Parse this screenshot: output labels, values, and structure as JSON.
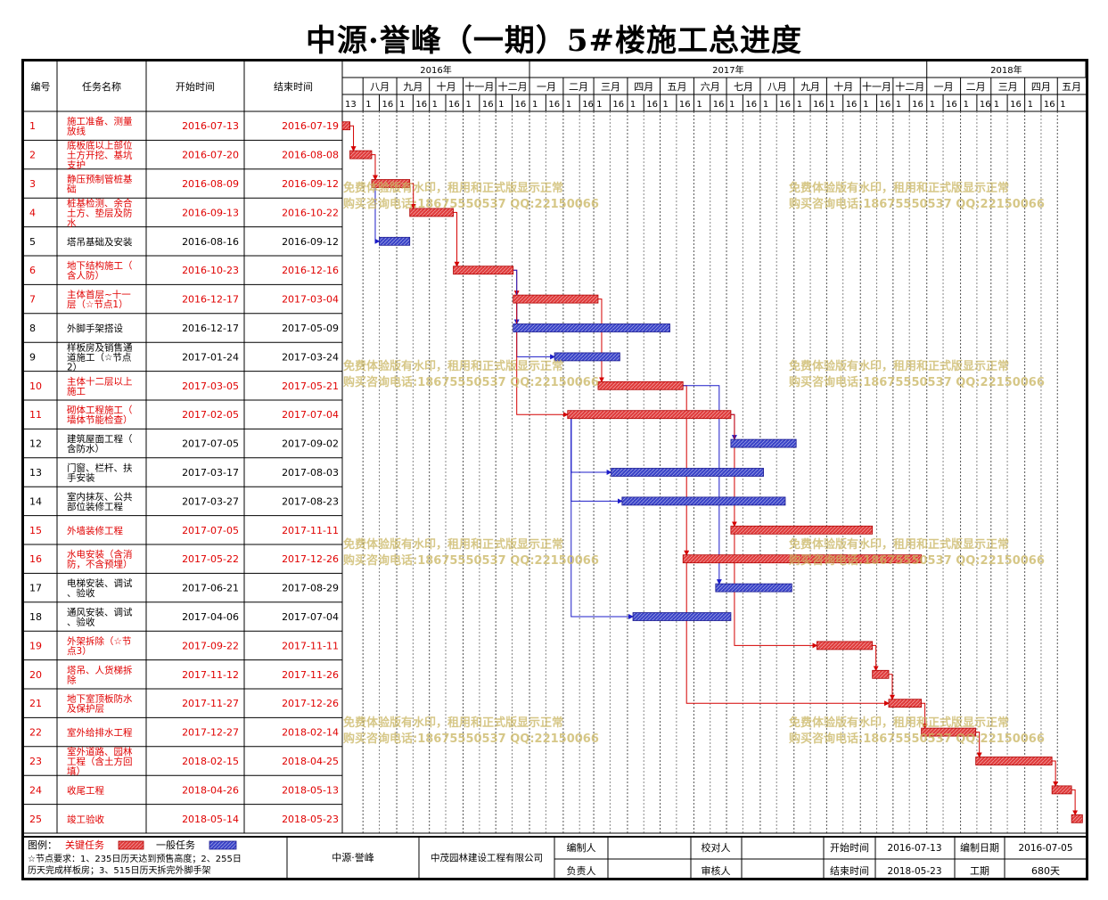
{
  "title": "中源·誉峰（一期）5#楼施工总进度",
  "header": {
    "col_id": "编号",
    "col_name": "任务名称",
    "col_start": "开始时间",
    "col_end": "结束时间",
    "years": [
      {
        "label": "2016年",
        "from": "2016-07-13",
        "to": "2017-01-01"
      },
      {
        "label": "2017年",
        "from": "2017-01-01",
        "to": "2018-01-01"
      },
      {
        "label": "2018年",
        "from": "2018-01-01",
        "to": "2018-05-27"
      }
    ],
    "months": [
      {
        "label": "八月",
        "from": "2016-08-01",
        "to": "2016-09-01"
      },
      {
        "label": "九月",
        "from": "2016-09-01",
        "to": "2016-10-01"
      },
      {
        "label": "十月",
        "from": "2016-10-01",
        "to": "2016-11-01"
      },
      {
        "label": "十一月",
        "from": "2016-11-01",
        "to": "2016-12-01"
      },
      {
        "label": "十二月",
        "from": "2016-12-01",
        "to": "2017-01-01"
      },
      {
        "label": "一月",
        "from": "2017-01-01",
        "to": "2017-02-01"
      },
      {
        "label": "二月",
        "from": "2017-02-01",
        "to": "2017-03-01"
      },
      {
        "label": "三月",
        "from": "2017-03-01",
        "to": "2017-04-01"
      },
      {
        "label": "四月",
        "from": "2017-04-01",
        "to": "2017-05-01"
      },
      {
        "label": "五月",
        "from": "2017-05-01",
        "to": "2017-06-01"
      },
      {
        "label": "六月",
        "from": "2017-06-01",
        "to": "2017-07-01"
      },
      {
        "label": "七月",
        "from": "2017-07-01",
        "to": "2017-08-01"
      },
      {
        "label": "八月",
        "from": "2017-08-01",
        "to": "2017-09-01"
      },
      {
        "label": "九月",
        "from": "2017-09-01",
        "to": "2017-10-01"
      },
      {
        "label": "十月",
        "from": "2017-10-01",
        "to": "2017-11-01"
      },
      {
        "label": "十一月",
        "from": "2017-11-01",
        "to": "2017-12-01"
      },
      {
        "label": "十二月",
        "from": "2017-12-01",
        "to": "2018-01-01"
      },
      {
        "label": "一月",
        "from": "2018-01-01",
        "to": "2018-02-01"
      },
      {
        "label": "二月",
        "from": "2018-02-01",
        "to": "2018-03-01"
      },
      {
        "label": "三月",
        "from": "2018-03-01",
        "to": "2018-04-01"
      },
      {
        "label": "四月",
        "from": "2018-04-01",
        "to": "2018-05-01"
      },
      {
        "label": "五月",
        "from": "2018-05-01",
        "to": "2018-05-27"
      }
    ],
    "day_ticks": [
      {
        "label": "13",
        "date": "2016-07-13"
      },
      {
        "label": "1",
        "date": "2016-08-01"
      },
      {
        "label": "16",
        "date": "2016-08-16"
      },
      {
        "label": "1",
        "date": "2016-09-01"
      },
      {
        "label": "16",
        "date": "2016-09-16"
      },
      {
        "label": "1",
        "date": "2016-10-01"
      },
      {
        "label": "16",
        "date": "2016-10-16"
      },
      {
        "label": "1",
        "date": "2016-11-01"
      },
      {
        "label": "16",
        "date": "2016-11-16"
      },
      {
        "label": "1",
        "date": "2016-12-01"
      },
      {
        "label": "16",
        "date": "2016-12-16"
      },
      {
        "label": "1",
        "date": "2017-01-01"
      },
      {
        "label": "16",
        "date": "2017-01-16"
      },
      {
        "label": "1",
        "date": "2017-02-01"
      },
      {
        "label": "16",
        "date": "2017-02-16"
      },
      {
        "label": "1",
        "date": "2017-03-01"
      },
      {
        "label": "16",
        "date": "2017-03-16"
      },
      {
        "label": "1",
        "date": "2017-04-01"
      },
      {
        "label": "16",
        "date": "2017-04-16"
      },
      {
        "label": "1",
        "date": "2017-05-01"
      },
      {
        "label": "16",
        "date": "2017-05-16"
      },
      {
        "label": "1",
        "date": "2017-06-01"
      },
      {
        "label": "16",
        "date": "2017-06-16"
      },
      {
        "label": "1",
        "date": "2017-07-01"
      },
      {
        "label": "16",
        "date": "2017-07-16"
      },
      {
        "label": "1",
        "date": "2017-08-01"
      },
      {
        "label": "16",
        "date": "2017-08-16"
      },
      {
        "label": "1",
        "date": "2017-09-01"
      },
      {
        "label": "16",
        "date": "2017-09-16"
      },
      {
        "label": "1",
        "date": "2017-10-01"
      },
      {
        "label": "16",
        "date": "2017-10-16"
      },
      {
        "label": "1",
        "date": "2017-11-01"
      },
      {
        "label": "16",
        "date": "2017-11-16"
      },
      {
        "label": "1",
        "date": "2017-12-01"
      },
      {
        "label": "16",
        "date": "2017-12-16"
      },
      {
        "label": "1",
        "date": "2018-01-01"
      },
      {
        "label": "16",
        "date": "2018-01-16"
      },
      {
        "label": "1",
        "date": "2018-02-01"
      },
      {
        "label": "16",
        "date": "2018-02-16"
      },
      {
        "label": "1",
        "date": "2018-03-01"
      },
      {
        "label": "16",
        "date": "2018-03-16"
      },
      {
        "label": "1",
        "date": "2018-04-01"
      },
      {
        "label": "16",
        "date": "2018-04-16"
      },
      {
        "label": "1",
        "date": "2018-05-01"
      }
    ]
  },
  "chart_data": {
    "type": "gantt",
    "x_range": [
      "2016-07-13",
      "2018-05-27"
    ],
    "tasks": [
      {
        "id": "1",
        "name": "施工准备、测量放线",
        "start": "2016-07-13",
        "end": "2016-07-19",
        "critical": true
      },
      {
        "id": "2",
        "name": "底板底以上部位土方开挖、基坑支护",
        "start": "2016-07-20",
        "end": "2016-08-08",
        "critical": true
      },
      {
        "id": "3",
        "name": "静压预制管桩基础",
        "start": "2016-08-09",
        "end": "2016-09-12",
        "critical": true
      },
      {
        "id": "4",
        "name": "桩基检测、余合土方、垫层及防水",
        "start": "2016-09-13",
        "end": "2016-10-22",
        "critical": true
      },
      {
        "id": "5",
        "name": "塔吊基础及安装",
        "start": "2016-08-16",
        "end": "2016-09-12",
        "critical": false
      },
      {
        "id": "6",
        "name": "地下结构施工（含人防）",
        "start": "2016-10-23",
        "end": "2016-12-16",
        "critical": true
      },
      {
        "id": "7",
        "name": "主体首层~十一层（☆节点1）",
        "start": "2016-12-17",
        "end": "2017-03-04",
        "critical": true
      },
      {
        "id": "8",
        "name": "外脚手架搭设",
        "start": "2016-12-17",
        "end": "2017-05-09",
        "critical": false
      },
      {
        "id": "9",
        "name": "样板房及销售通道施工（☆节点2）",
        "start": "2017-01-24",
        "end": "2017-03-24",
        "critical": false
      },
      {
        "id": "10",
        "name": "主体十二层以上施工",
        "start": "2017-03-05",
        "end": "2017-05-21",
        "critical": true
      },
      {
        "id": "11",
        "name": "砌体工程施工（墙体节能检查）",
        "start": "2017-02-05",
        "end": "2017-07-04",
        "critical": true
      },
      {
        "id": "12",
        "name": "建筑屋面工程（含防水）",
        "start": "2017-07-05",
        "end": "2017-09-02",
        "critical": false
      },
      {
        "id": "13",
        "name": "门窗、栏杆、扶手安装",
        "start": "2017-03-17",
        "end": "2017-08-03",
        "critical": false
      },
      {
        "id": "14",
        "name": "室内抹灰、公共部位装修工程",
        "start": "2017-03-27",
        "end": "2017-08-23",
        "critical": false
      },
      {
        "id": "15",
        "name": "外墙装修工程",
        "start": "2017-07-05",
        "end": "2017-11-11",
        "critical": true
      },
      {
        "id": "16",
        "name": "水电安装（含消防，不含预埋）",
        "start": "2017-05-22",
        "end": "2017-12-26",
        "critical": true
      },
      {
        "id": "17",
        "name": "电梯安装、调试、验收",
        "start": "2017-06-21",
        "end": "2017-08-29",
        "critical": false
      },
      {
        "id": "18",
        "name": "通风安装、调试、验收",
        "start": "2017-04-06",
        "end": "2017-07-04",
        "critical": false
      },
      {
        "id": "19",
        "name": "外架拆除（☆节点3）",
        "start": "2017-09-22",
        "end": "2017-11-11",
        "critical": true
      },
      {
        "id": "20",
        "name": "塔吊、人货梯拆除",
        "start": "2017-11-12",
        "end": "2017-11-26",
        "critical": true
      },
      {
        "id": "21",
        "name": "地下室顶板防水及保护层",
        "start": "2017-11-27",
        "end": "2017-12-26",
        "critical": true
      },
      {
        "id": "22",
        "name": "室外给排水工程",
        "start": "2017-12-27",
        "end": "2018-02-14",
        "critical": true
      },
      {
        "id": "23",
        "name": "室外道路、园林工程（含土方回填）",
        "start": "2018-02-15",
        "end": "2018-04-25",
        "critical": true
      },
      {
        "id": "24",
        "name": "收尾工程",
        "start": "2018-04-26",
        "end": "2018-05-13",
        "critical": true
      },
      {
        "id": "25",
        "name": "竣工验收",
        "start": "2018-05-14",
        "end": "2018-05-23",
        "critical": true
      }
    ],
    "links": [
      [
        1,
        2
      ],
      [
        2,
        3
      ],
      [
        3,
        4
      ],
      [
        3,
        5
      ],
      [
        4,
        6
      ],
      [
        6,
        7
      ],
      [
        6,
        8
      ],
      [
        7,
        9
      ],
      [
        7,
        10
      ],
      [
        7,
        11
      ],
      [
        11,
        12
      ],
      [
        11,
        13
      ],
      [
        11,
        14
      ],
      [
        11,
        18
      ],
      [
        11,
        15
      ],
      [
        10,
        16
      ],
      [
        10,
        17
      ],
      [
        15,
        19
      ],
      [
        19,
        20
      ],
      [
        20,
        21
      ],
      [
        16,
        21
      ],
      [
        21,
        22
      ],
      [
        22,
        23
      ],
      [
        23,
        24
      ],
      [
        24,
        25
      ]
    ],
    "colors": {
      "critical": "#e03c3c",
      "normal": "#3b44c8",
      "critical_text": "#e00000",
      "link_critical": "#d40000",
      "link_normal": "#1c1cc8"
    }
  },
  "watermark": {
    "line1": "免费体验版有水印，租用和正式版显示正常",
    "line2": "购买咨询电话:18675550537 QQ:22150066"
  },
  "footer": {
    "legend_label": "图例：",
    "legend_critical": "关键任务",
    "legend_normal": "一般任务",
    "note_line1": "☆节点要求：1、235日历天达到预售高度；2、255日",
    "note_line2": "历天完成样板房；3、515日历天拆完外脚手架",
    "project": "中源·誉峰",
    "company": "中茂园林建设工程有限公司",
    "compiler_label": "编制人",
    "compiler_value": "",
    "checker_label": "校对人",
    "checker_value": "",
    "owner_label": "负责人",
    "owner_value": "",
    "reviewer_label": "审核人",
    "reviewer_value": "",
    "start_label": "开始时间",
    "start_value": "2016-07-13",
    "end_label": "结束时间",
    "end_value": "2018-05-23",
    "date_label": "编制日期",
    "date_value": "2016-07-05",
    "duration_label": "工期",
    "duration_value": "680天"
  }
}
